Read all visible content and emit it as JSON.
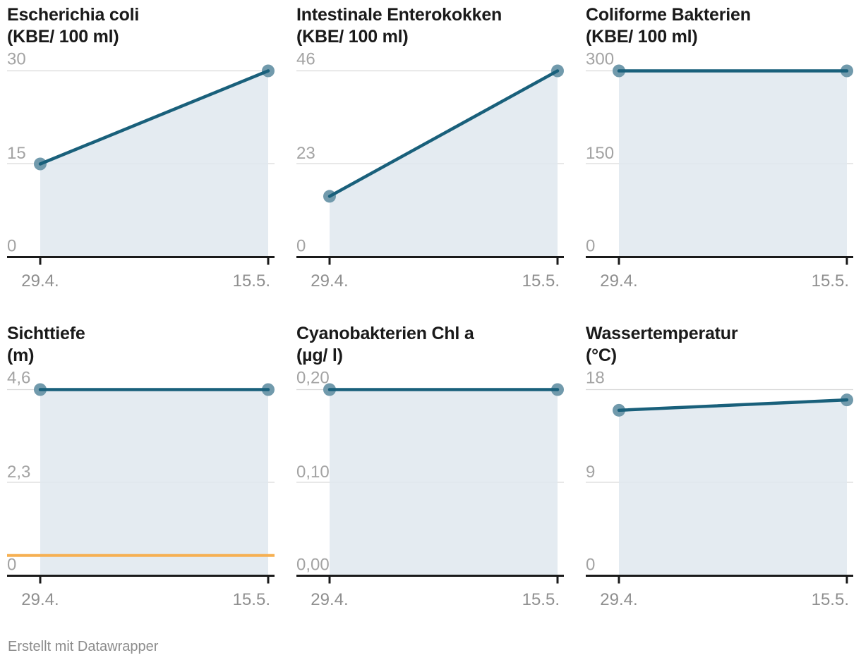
{
  "page": {
    "footer": "Erstellt mit Datawrapper"
  },
  "style": {
    "line_color": "#19607b",
    "marker_color": "#719aac",
    "area_color": "#dfe8ee",
    "grid_color": "#d9d9d9",
    "axis_color": "#1a1a1a",
    "y_label_color": "#a3a3a3",
    "x_label_color": "#8f8f8f",
    "title_color": "#1a1a1a",
    "reference_color": "#f6b052"
  },
  "chart_data": [
    {
      "type": "area",
      "title_line1": "Escherichia coli",
      "title_line2": "(KBE/ 100 ml)",
      "x": [
        "29.4.",
        "15.5."
      ],
      "values": [
        15,
        30
      ],
      "ylim": [
        0,
        30
      ],
      "yticks": [
        {
          "value": 30,
          "label": "30"
        },
        {
          "value": 15,
          "label": "15"
        },
        {
          "value": 0,
          "label": "0"
        }
      ],
      "grid": true,
      "legend": "none"
    },
    {
      "type": "area",
      "title_line1": "Intestinale Enterokokken",
      "title_line2": "(KBE/ 100 ml)",
      "x": [
        "29.4.",
        "15.5."
      ],
      "values": [
        15,
        46
      ],
      "ylim": [
        0,
        46
      ],
      "yticks": [
        {
          "value": 46,
          "label": "46"
        },
        {
          "value": 23,
          "label": "23"
        },
        {
          "value": 0,
          "label": "0"
        }
      ],
      "grid": true,
      "legend": "none"
    },
    {
      "type": "area",
      "title_line1": "Coliforme Bakterien",
      "title_line2": "(KBE/ 100 ml)",
      "x": [
        "29.4.",
        "15.5."
      ],
      "values": [
        300,
        300
      ],
      "ylim": [
        0,
        300
      ],
      "yticks": [
        {
          "value": 300,
          "label": "300"
        },
        {
          "value": 150,
          "label": "150"
        },
        {
          "value": 0,
          "label": "0"
        }
      ],
      "grid": true,
      "legend": "none"
    },
    {
      "type": "area",
      "title_line1": "Sichttiefe",
      "title_line2": "(m)",
      "x": [
        "29.4.",
        "15.5."
      ],
      "values": [
        4.6,
        4.6
      ],
      "ylim": [
        0,
        4.6
      ],
      "yticks": [
        {
          "value": 4.6,
          "label": "4,6"
        },
        {
          "value": 2.3,
          "label": "2,3"
        },
        {
          "value": 0,
          "label": "0"
        }
      ],
      "reference_line": {
        "value": 0.5
      },
      "grid": true,
      "legend": "none"
    },
    {
      "type": "area",
      "title_line1": "Cyanobakterien Chl a",
      "title_line2": "(µg/ l)",
      "x": [
        "29.4.",
        "15.5."
      ],
      "values": [
        0.2,
        0.2
      ],
      "ylim": [
        0,
        0.2
      ],
      "yticks": [
        {
          "value": 0.2,
          "label": "0,20"
        },
        {
          "value": 0.1,
          "label": "0,10"
        },
        {
          "value": 0,
          "label": "0,00"
        }
      ],
      "grid": true,
      "legend": "none"
    },
    {
      "type": "area",
      "title_line1": "Wassertemperatur",
      "title_line2": "(°C)",
      "x": [
        "29.4.",
        "15.5."
      ],
      "values": [
        16,
        17
      ],
      "ylim": [
        0,
        18
      ],
      "yticks": [
        {
          "value": 18,
          "label": "18"
        },
        {
          "value": 9,
          "label": "9"
        },
        {
          "value": 0,
          "label": "0"
        }
      ],
      "grid": true,
      "legend": "none"
    }
  ]
}
